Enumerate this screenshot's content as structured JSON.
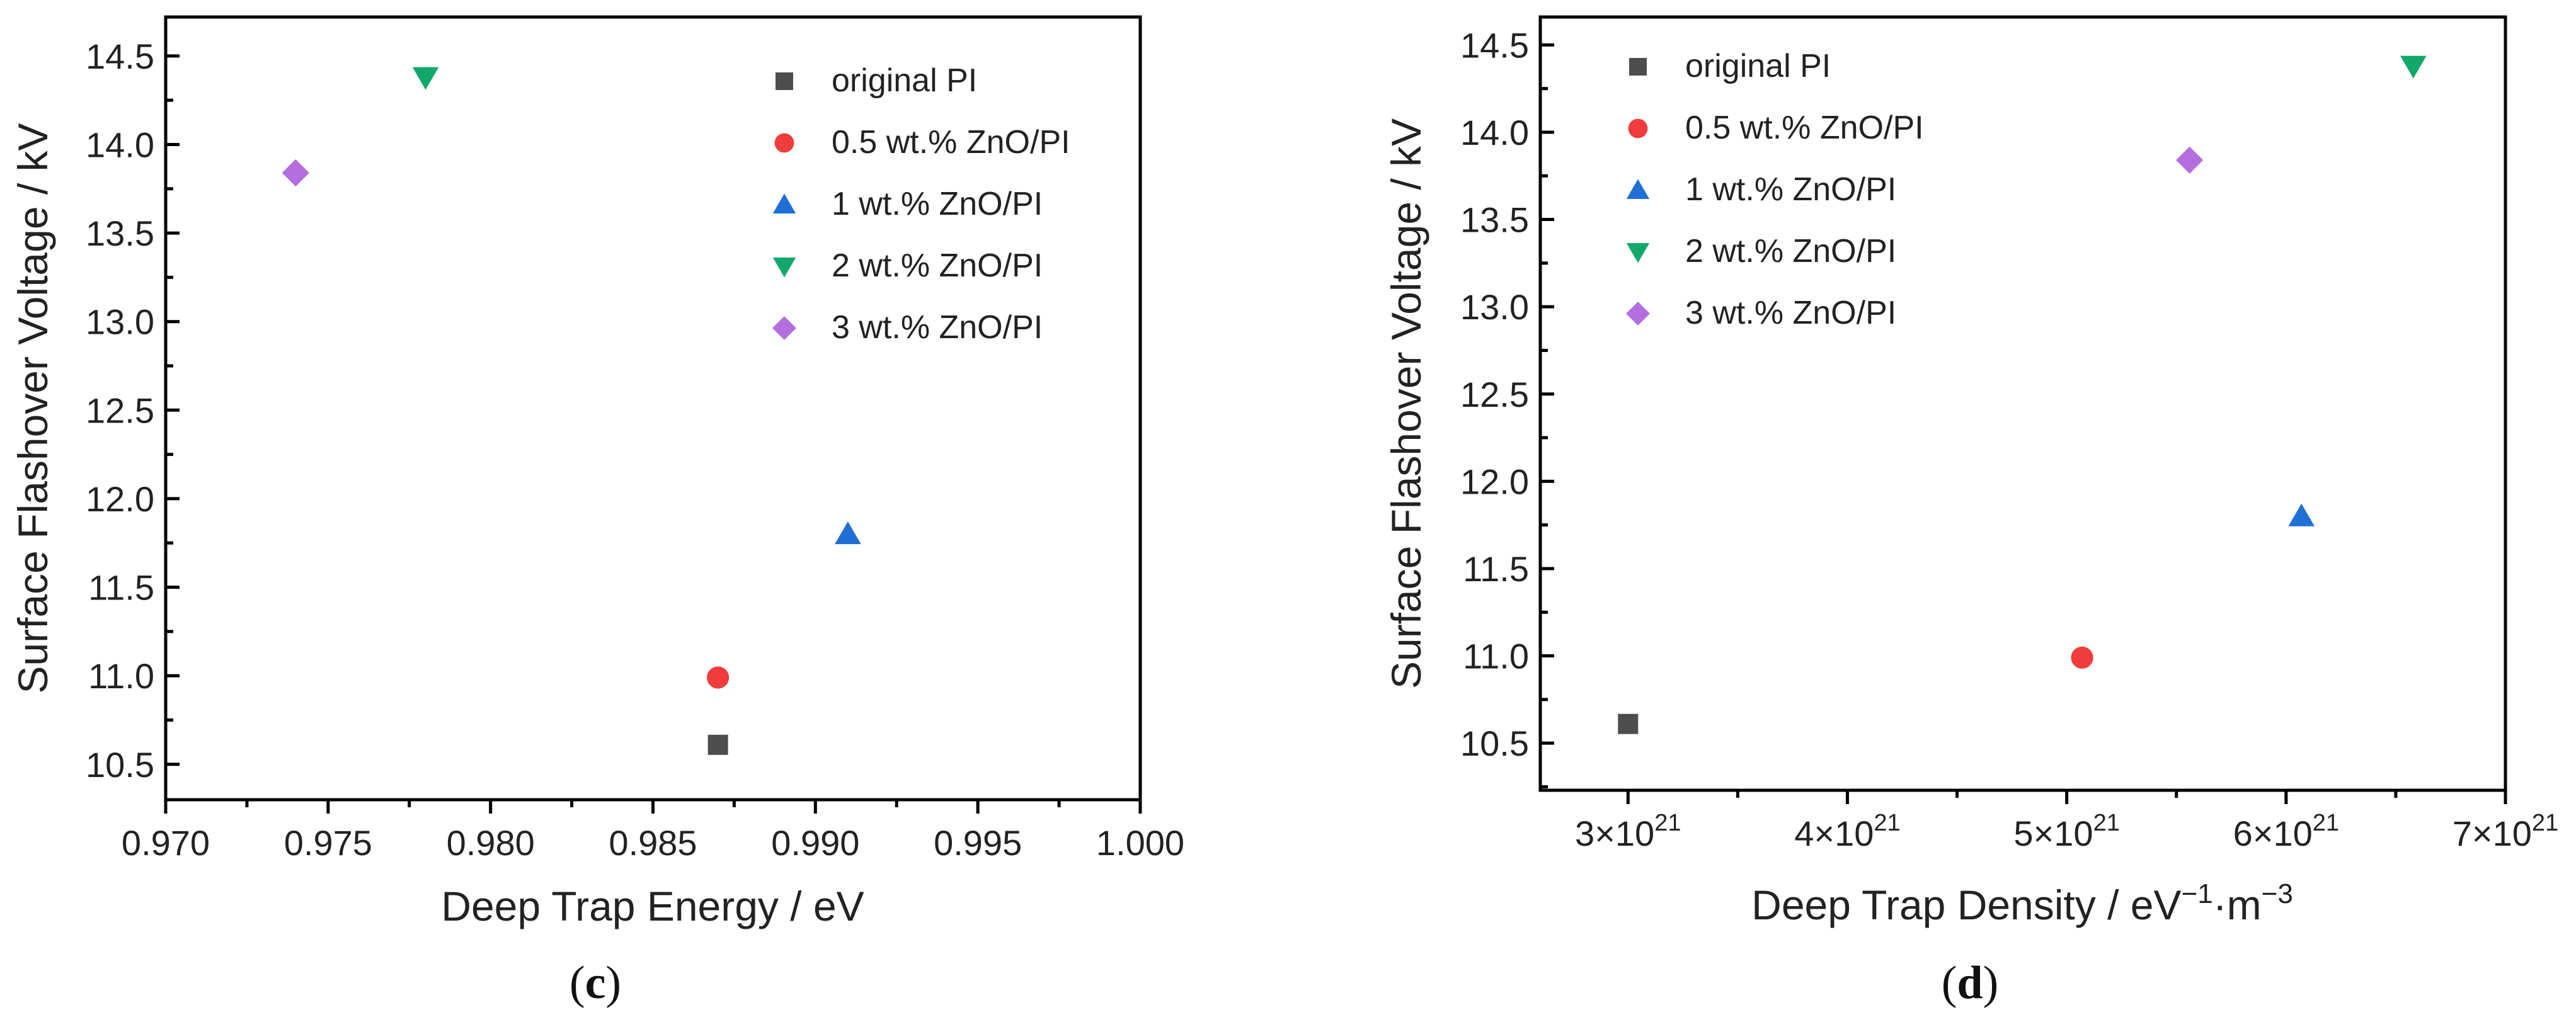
{
  "chart_data": [
    {
      "panel": "c",
      "type": "scatter",
      "xlabel": "Deep Trap Energy / eV",
      "ylabel": "Surface Flashover Voltage / kV",
      "xlim": [
        0.97,
        1.0
      ],
      "ylim": [
        10.3,
        14.72
      ],
      "xticks": [
        0.97,
        0.975,
        0.98,
        0.985,
        0.99,
        0.995,
        1.0
      ],
      "xtick_labels": [
        "0.970",
        "0.975",
        "0.980",
        "0.985",
        "0.990",
        "0.995",
        "1.000"
      ],
      "yticks": [
        10.5,
        11.0,
        11.5,
        12.0,
        12.5,
        13.0,
        13.5,
        14.0,
        14.5
      ],
      "ytick_labels": [
        "10.5",
        "11.0",
        "11.5",
        "12.0",
        "12.5",
        "13.0",
        "13.5",
        "14.0",
        "14.5"
      ],
      "legend_position": "top-right",
      "series": [
        {
          "name": "original PI",
          "marker": "square",
          "color": "#4d4d4d",
          "x": 0.987,
          "y": 10.61
        },
        {
          "name": "0.5 wt.% ZnO/PI",
          "marker": "circle",
          "color": "#f03c3c",
          "x": 0.987,
          "y": 10.99
        },
        {
          "name": "1 wt.% ZnO/PI",
          "marker": "triangle-up",
          "color": "#1f6fd6",
          "x": 0.991,
          "y": 11.8
        },
        {
          "name": "2 wt.% ZnO/PI",
          "marker": "triangle-down",
          "color": "#13a86b",
          "x": 0.978,
          "y": 14.38
        },
        {
          "name": "3 wt.% ZnO/PI",
          "marker": "diamond",
          "color": "#b46ee0",
          "x": 0.974,
          "y": 13.84
        }
      ]
    },
    {
      "panel": "d",
      "type": "scatter",
      "xlabel_main": "Deep Trap Density / eV",
      "xlabel_sup1": "−1",
      "xlabel_mid": "·m",
      "xlabel_sup2": "−3",
      "ylabel": "Surface Flashover Voltage / kV",
      "xlim": [
        2.6e+21,
        7e+21
      ],
      "ylim": [
        10.23,
        14.66
      ],
      "xticks": [
        3e+21,
        4e+21,
        5e+21,
        6e+21,
        7e+21
      ],
      "xtick_labels": [
        {
          "base": "3×10",
          "exp": "21"
        },
        {
          "base": "4×10",
          "exp": "21"
        },
        {
          "base": "5×10",
          "exp": "21"
        },
        {
          "base": "6×10",
          "exp": "21"
        },
        {
          "base": "7×10",
          "exp": "21"
        }
      ],
      "yticks": [
        10.5,
        11.0,
        11.5,
        12.0,
        12.5,
        13.0,
        13.5,
        14.0,
        14.5
      ],
      "ytick_labels": [
        "10.5",
        "11.0",
        "11.5",
        "12.0",
        "12.5",
        "13.0",
        "13.5",
        "14.0",
        "14.5"
      ],
      "legend_position": "top-left",
      "series": [
        {
          "name": "original PI",
          "marker": "square",
          "color": "#4d4d4d",
          "x": 3e+21,
          "y": 10.61
        },
        {
          "name": "0.5 wt.% ZnO/PI",
          "marker": "circle",
          "color": "#f03c3c",
          "x": 5.07e+21,
          "y": 10.99
        },
        {
          "name": "1 wt.% ZnO/PI",
          "marker": "triangle-up",
          "color": "#1f6fd6",
          "x": 6.07e+21,
          "y": 11.8
        },
        {
          "name": "2 wt.% ZnO/PI",
          "marker": "triangle-down",
          "color": "#13a86b",
          "x": 6.58e+21,
          "y": 14.38
        },
        {
          "name": "3 wt.% ZnO/PI",
          "marker": "diamond",
          "color": "#b46ee0",
          "x": 5.56e+21,
          "y": 13.84
        }
      ]
    }
  ],
  "captions": {
    "c": {
      "open": "(",
      "letter": "c",
      "close": ")"
    },
    "d": {
      "open": "(",
      "letter": "d",
      "close": ")"
    }
  }
}
